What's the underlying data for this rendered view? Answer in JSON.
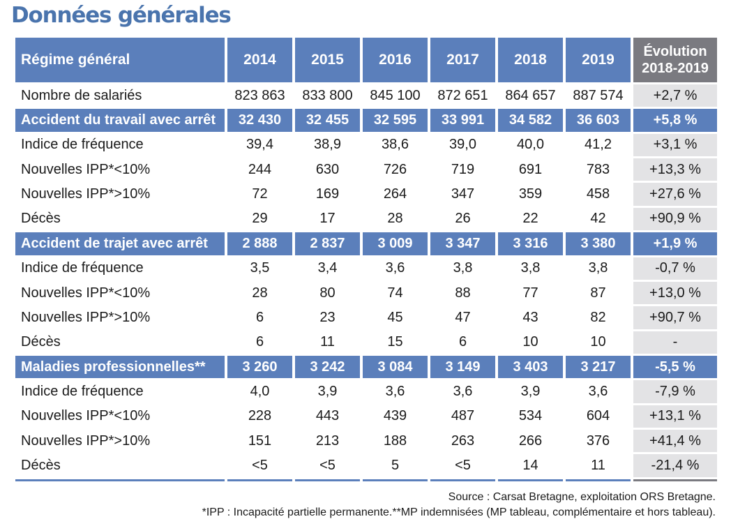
{
  "title": "Données générales",
  "table": {
    "headers": [
      "Régime général",
      "2014",
      "2015",
      "2016",
      "2017",
      "2018",
      "2019"
    ],
    "evolution_header": {
      "line1": "Évolution",
      "line2": "2018-2019"
    },
    "rows": [
      {
        "kind": "normal",
        "cells": [
          "Nombre de salariés",
          "823 863",
          "833 800",
          "845 100",
          "872 651",
          "864 657",
          "887 574",
          "+2,7 %"
        ]
      },
      {
        "kind": "section",
        "cells": [
          "Accident du travail avec arrêt",
          "32 430",
          "32 455",
          "32 595",
          "33 991",
          "34 582",
          "36 603",
          "+5,8 %"
        ]
      },
      {
        "kind": "normal",
        "cells": [
          "Indice de fréquence",
          "39,4",
          "38,9",
          "38,6",
          "39,0",
          "40,0",
          "41,2",
          "+3,1 %"
        ]
      },
      {
        "kind": "normal",
        "cells": [
          "Nouvelles IPP*<10%",
          "244",
          "630",
          "726",
          "719",
          "691",
          "783",
          "+13,3 %"
        ]
      },
      {
        "kind": "normal",
        "cells": [
          "Nouvelles IPP*>10%",
          "72",
          "169",
          "264",
          "347",
          "359",
          "458",
          "+27,6 %"
        ]
      },
      {
        "kind": "normal",
        "cells": [
          "Décès",
          "29",
          "17",
          "28",
          "26",
          "22",
          "42",
          "+90,9 %"
        ]
      },
      {
        "kind": "section",
        "cells": [
          "Accident de trajet avec arrêt",
          "2 888",
          "2 837",
          "3 009",
          "3 347",
          "3 316",
          "3 380",
          "+1,9 %"
        ]
      },
      {
        "kind": "normal",
        "cells": [
          "Indice de fréquence",
          "3,5",
          "3,4",
          "3,6",
          "3,8",
          "3,8",
          "3,8",
          "-0,7 %"
        ]
      },
      {
        "kind": "normal",
        "cells": [
          "Nouvelles IPP*<10%",
          "28",
          "80",
          "74",
          "88",
          "77",
          "87",
          "+13,0 %"
        ]
      },
      {
        "kind": "normal",
        "cells": [
          "Nouvelles IPP*>10%",
          "6",
          "23",
          "45",
          "47",
          "43",
          "82",
          "+90,7 %"
        ]
      },
      {
        "kind": "normal",
        "cells": [
          "Décès",
          "6",
          "11",
          "15",
          "6",
          "10",
          "10",
          "-"
        ]
      },
      {
        "kind": "section",
        "cells": [
          "Maladies professionnelles**",
          "3 260",
          "3 242",
          "3 084",
          "3 149",
          "3 403",
          "3 217",
          "-5,5 %"
        ]
      },
      {
        "kind": "normal",
        "cells": [
          "Indice de fréquence",
          "4,0",
          "3,9",
          "3,6",
          "3,6",
          "3,9",
          "3,6",
          "-7,9 %"
        ]
      },
      {
        "kind": "normal",
        "cells": [
          "Nouvelles IPP*<10%",
          "228",
          "443",
          "439",
          "487",
          "534",
          "604",
          "+13,1 %"
        ]
      },
      {
        "kind": "normal",
        "cells": [
          "Nouvelles IPP*>10%",
          "151",
          "213",
          "188",
          "263",
          "266",
          "376",
          "+41,4 %"
        ]
      },
      {
        "kind": "normal",
        "cells": [
          "Décès",
          "<5",
          "<5",
          "5",
          "<5",
          "14",
          "11",
          "-21,4 %"
        ]
      }
    ]
  },
  "source": "Source : Carsat Bretagne, exploitation ORS Bretagne.",
  "footnote": "*IPP : Incapacité partielle permanente.**MP indemnisées (MP tableau, complémentaire et hors tableau).",
  "colors": {
    "accent": "#5b7fbb",
    "title": "#4a74ad",
    "evolution_header": "#7a7a80",
    "evolution_cell": "#e3e3e5"
  }
}
